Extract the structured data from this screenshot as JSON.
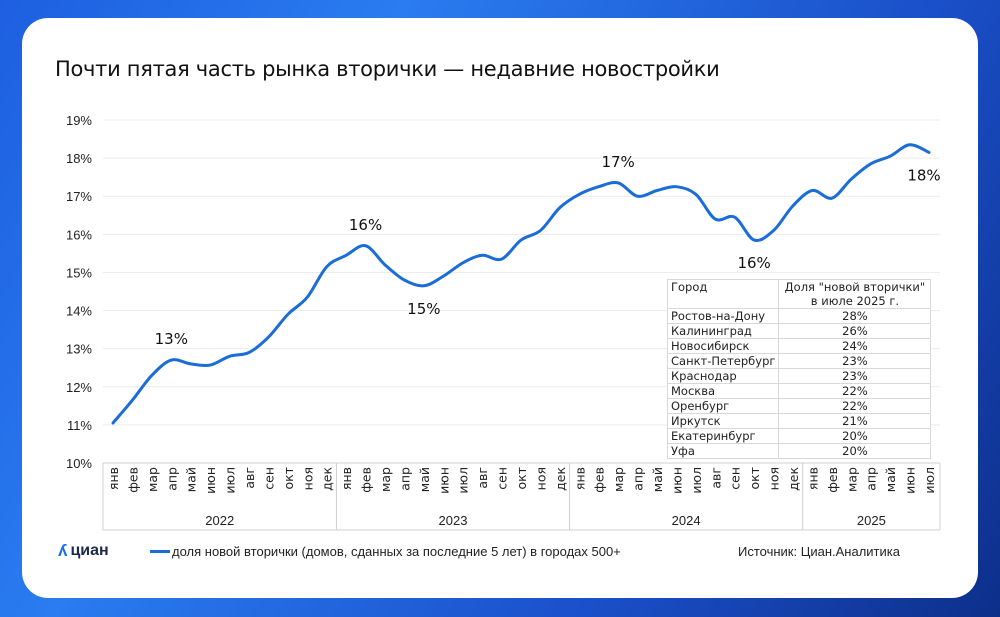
{
  "title": "Почти пятая часть рынка вторички — недавние новостройки",
  "logo": "циан",
  "source": "Источник: Циан.Аналитика",
  "colors": {
    "line": "#1a6dd6",
    "accent": "#1a6df0"
  },
  "chart_data": {
    "type": "line",
    "title": "Почти пятая часть рынка вторички — недавние новостройки",
    "ylim": [
      10,
      19
    ],
    "yticks": [
      "10%",
      "11%",
      "12%",
      "13%",
      "14%",
      "15%",
      "16%",
      "17%",
      "18%",
      "19%"
    ],
    "grid": true,
    "legend_position": "bottom",
    "months": [
      "янв",
      "фев",
      "мар",
      "апр",
      "май",
      "июн",
      "июл",
      "авг",
      "сен",
      "окт",
      "ноя",
      "дек"
    ],
    "years": [
      {
        "label": "2022",
        "months": 12
      },
      {
        "label": "2023",
        "months": 12
      },
      {
        "label": "2024",
        "months": 12
      },
      {
        "label": "2025",
        "months": 7
      }
    ],
    "series": [
      {
        "name": "доля новой вторички (домов, сданных за последние 5 лет) в городах 500+",
        "values": [
          11.05,
          11.65,
          12.3,
          12.7,
          12.6,
          12.57,
          12.8,
          12.9,
          13.3,
          13.9,
          14.35,
          15.15,
          15.45,
          15.7,
          15.2,
          14.8,
          14.65,
          14.9,
          15.25,
          15.45,
          15.35,
          15.85,
          16.1,
          16.7,
          17.05,
          17.25,
          17.35,
          17.0,
          17.15,
          17.25,
          17.05,
          16.4,
          16.45,
          15.85,
          16.1,
          16.75,
          17.15,
          16.95,
          17.45,
          17.85,
          18.05,
          18.35,
          18.15
        ]
      }
    ],
    "annotations": [
      {
        "index": 3,
        "text": "13%",
        "pos": "above"
      },
      {
        "index": 13,
        "text": "16%",
        "pos": "above"
      },
      {
        "index": 16,
        "text": "15%",
        "pos": "below"
      },
      {
        "index": 26,
        "text": "17%",
        "pos": "above"
      },
      {
        "index": 33,
        "text": "16%",
        "pos": "below"
      },
      {
        "index": 42,
        "text": "18%",
        "pos": "below"
      }
    ]
  },
  "table": {
    "headers": [
      "Город",
      "Доля \"новой вторички\" в июле 2025 г."
    ],
    "rows": [
      [
        "Ростов-на-Дону",
        "28%"
      ],
      [
        "Калининград",
        "26%"
      ],
      [
        "Новосибирск",
        "24%"
      ],
      [
        "Санкт-Петербург",
        "23%"
      ],
      [
        "Краснодар",
        "23%"
      ],
      [
        "Москва",
        "22%"
      ],
      [
        "Оренбург",
        "22%"
      ],
      [
        "Иркутск",
        "21%"
      ],
      [
        "Екатеринбург",
        "20%"
      ],
      [
        "Уфа",
        "20%"
      ]
    ]
  }
}
